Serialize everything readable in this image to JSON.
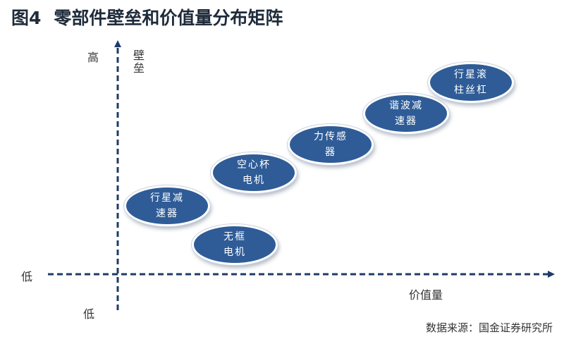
{
  "figure": {
    "title_num": "图4",
    "title_text": "零部件壁垒和价值量分布矩阵"
  },
  "axes": {
    "y_high": "高",
    "y_name": "壁垒",
    "y_low": "低",
    "x_low": "低",
    "x_name": "价值量",
    "color": "#1f3a66"
  },
  "nodes": [
    {
      "line1": "行星减",
      "line2": "速器"
    },
    {
      "line1": "无框",
      "line2": "电机"
    },
    {
      "line1": "空心杯",
      "line2": "电机"
    },
    {
      "line1": "力传感",
      "line2": "器"
    },
    {
      "line1": "谐波减",
      "line2": "速器"
    },
    {
      "line1": "行星滚",
      "line2": "柱丝杠"
    }
  ],
  "node_color": "#2f5c97",
  "source": "数据来源：国金证券研究所"
}
